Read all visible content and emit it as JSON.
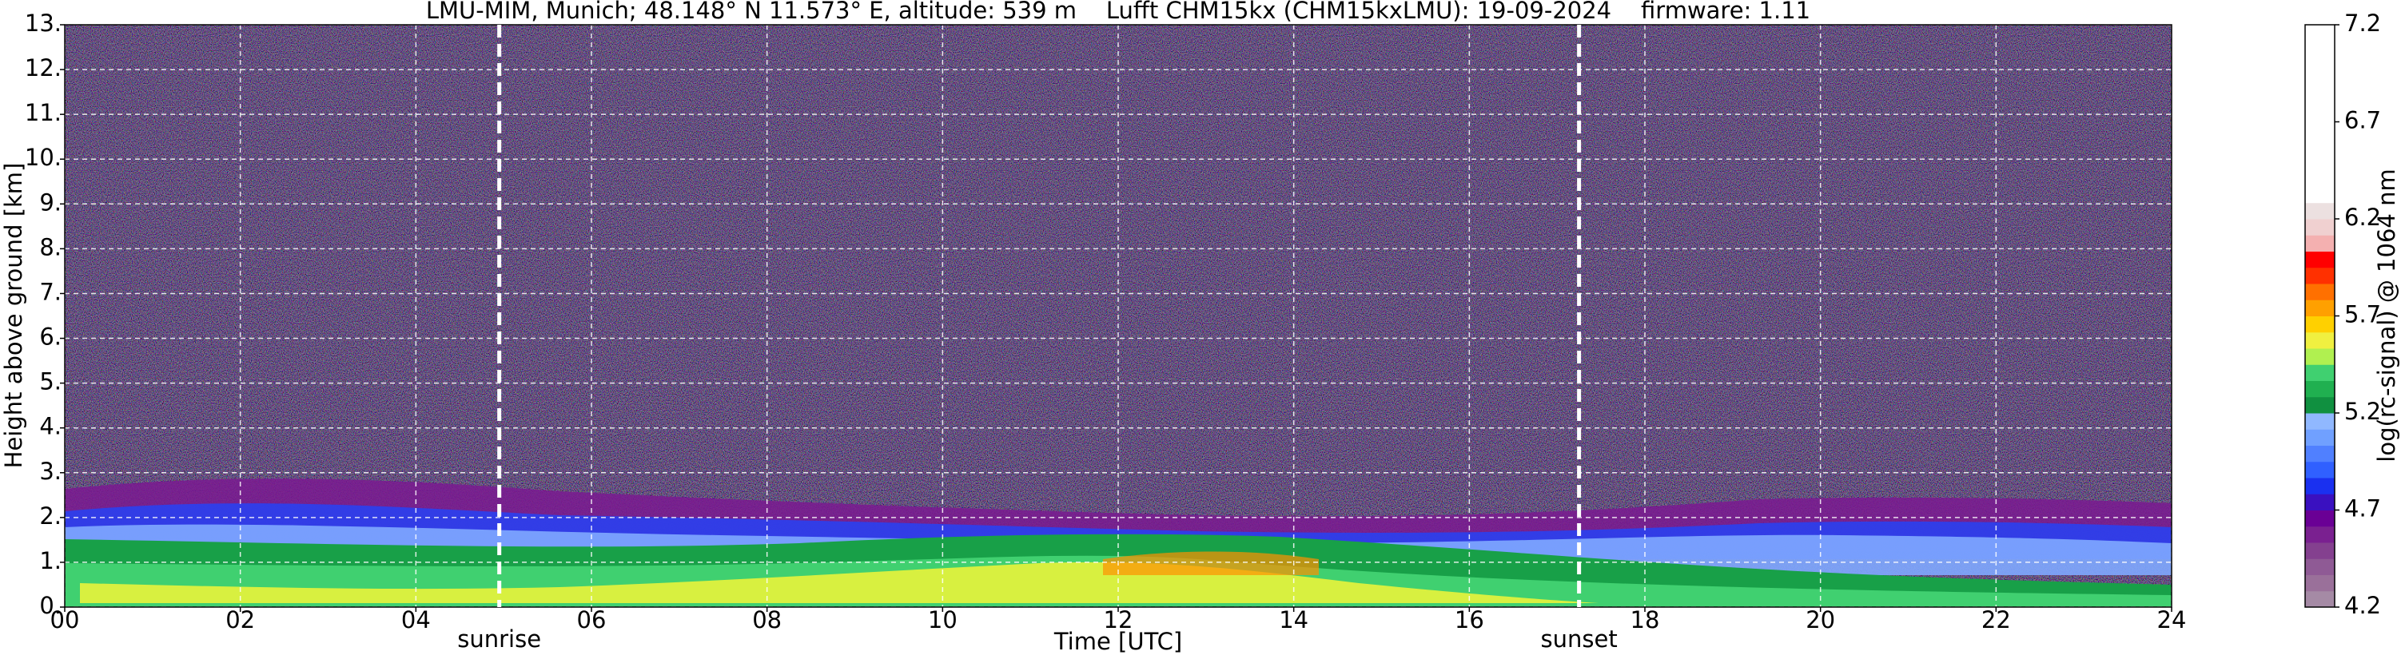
{
  "chart_data": {
    "type": "heatmap",
    "title": "LMU-MIM, Munich; 48.148° N 11.573° E, altitude: 539 m    Lufft CHM15kx (CHM15kxLMU): 19-09-2024    firmware: 1.11",
    "xlabel": "Time [UTC]",
    "ylabel": "Height above ground [km]",
    "xlim": [
      0,
      24
    ],
    "xticks": [
      {
        "value": 0,
        "label": "00"
      },
      {
        "value": 2,
        "label": "02"
      },
      {
        "value": 4,
        "label": "04"
      },
      {
        "value": 6,
        "label": "06"
      },
      {
        "value": 8,
        "label": "08"
      },
      10,
      12,
      14,
      16,
      18,
      20,
      22,
      24
    ],
    "ylim": [
      0,
      13
    ],
    "yticks": [
      {
        "value": 0,
        "label": "0."
      },
      {
        "value": 1,
        "label": "1."
      },
      {
        "value": 2,
        "label": "2."
      },
      {
        "value": 3,
        "label": "3."
      },
      {
        "value": 4,
        "label": "4."
      },
      {
        "value": 5,
        "label": "5."
      },
      {
        "value": 6,
        "label": "6."
      },
      {
        "value": 7,
        "label": "7."
      },
      {
        "value": 8,
        "label": "8."
      },
      {
        "value": 9,
        "label": "9."
      },
      {
        "value": 10,
        "label": "10."
      },
      {
        "value": 11,
        "label": "11."
      },
      {
        "value": 12,
        "label": "12."
      },
      {
        "value": 13,
        "label": "13."
      }
    ],
    "grid": true,
    "annotations": [
      {
        "text": "sunrise",
        "x": 4.95
      },
      {
        "text": "sunset",
        "x": 17.25
      }
    ],
    "colorbar": {
      "label": "log(rc-signal) @ 1064 nm",
      "lim": [
        4.2,
        7.2
      ],
      "ticks": [
        4.2,
        4.7,
        5.2,
        5.7,
        6.2,
        6.7,
        7.2
      ],
      "colors": [
        "#a58aa5",
        "#9a709a",
        "#8f5a95",
        "#84408f",
        "#7a2090",
        "#6a0095",
        "#3a10c0",
        "#1a30f0",
        "#3060ff",
        "#5080ff",
        "#70a0ff",
        "#90b8ff",
        "#109040",
        "#20b050",
        "#40d070",
        "#b0f050",
        "#f0f040",
        "#ffd000",
        "#ffa000",
        "#ff7000",
        "#ff3000",
        "#ff0000",
        "#f4b0b0",
        "#f0d0d0",
        "#ece0e0",
        "#ffffff",
        "#ffffff",
        "#ffffff",
        "#ffffff",
        "#ffffff",
        "#ffffff",
        "#ffffff",
        "#ffffff",
        "#ffffff",
        "#ffffff",
        "#ffffff"
      ]
    }
  }
}
